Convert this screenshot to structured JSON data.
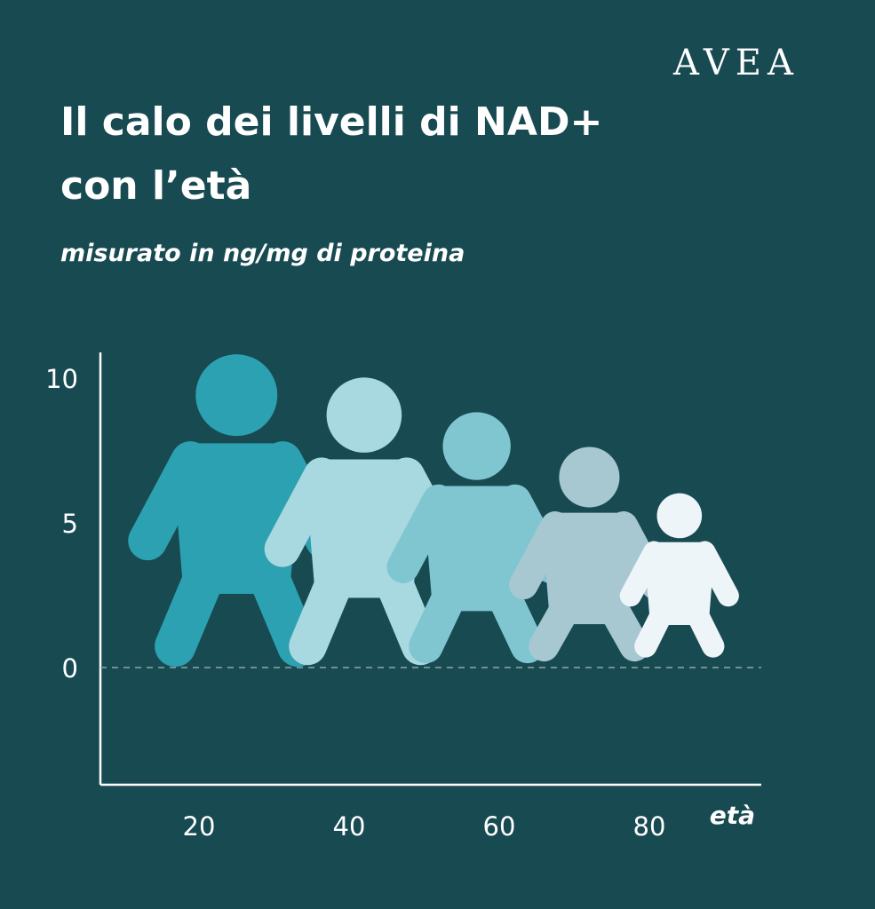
{
  "brand": "AVEA",
  "title_line1": "Il calo dei livelli di NAD+",
  "title_line2": "con l’età",
  "subtitle": "misurato in ng/mg di proteina",
  "chart_data": {
    "type": "bar",
    "title": "Il calo dei livelli di NAD+ con l’età",
    "subtitle": "misurato in ng/mg di proteina",
    "xlabel": "età",
    "ylabel": "",
    "categories": [
      "20",
      "40",
      "60",
      "80"
    ],
    "x_ticks": [
      20,
      40,
      60,
      80
    ],
    "y_ticks": [
      0,
      5,
      10
    ],
    "ylim": [
      0,
      10
    ],
    "marker": "human-figure-pictogram",
    "values": [
      {
        "age": 25,
        "nad_level": 10.7
      },
      {
        "age": 42,
        "nad_level": 9.9
      },
      {
        "age": 57,
        "nad_level": 8.7
      },
      {
        "age": 72,
        "nad_level": 7.5
      },
      {
        "age": 84,
        "nad_level": 5.9
      }
    ],
    "colors": [
      "#2ca1b1",
      "#a8d8e0",
      "#80c6d1",
      "#a7c8d1",
      "#eef5f9"
    ],
    "grid": false,
    "zero_line": "dashed"
  },
  "colors": {
    "background": "#184a52",
    "text": "#ffffff",
    "axis": "#ffffff",
    "zero_line": "#8fa6ab"
  }
}
